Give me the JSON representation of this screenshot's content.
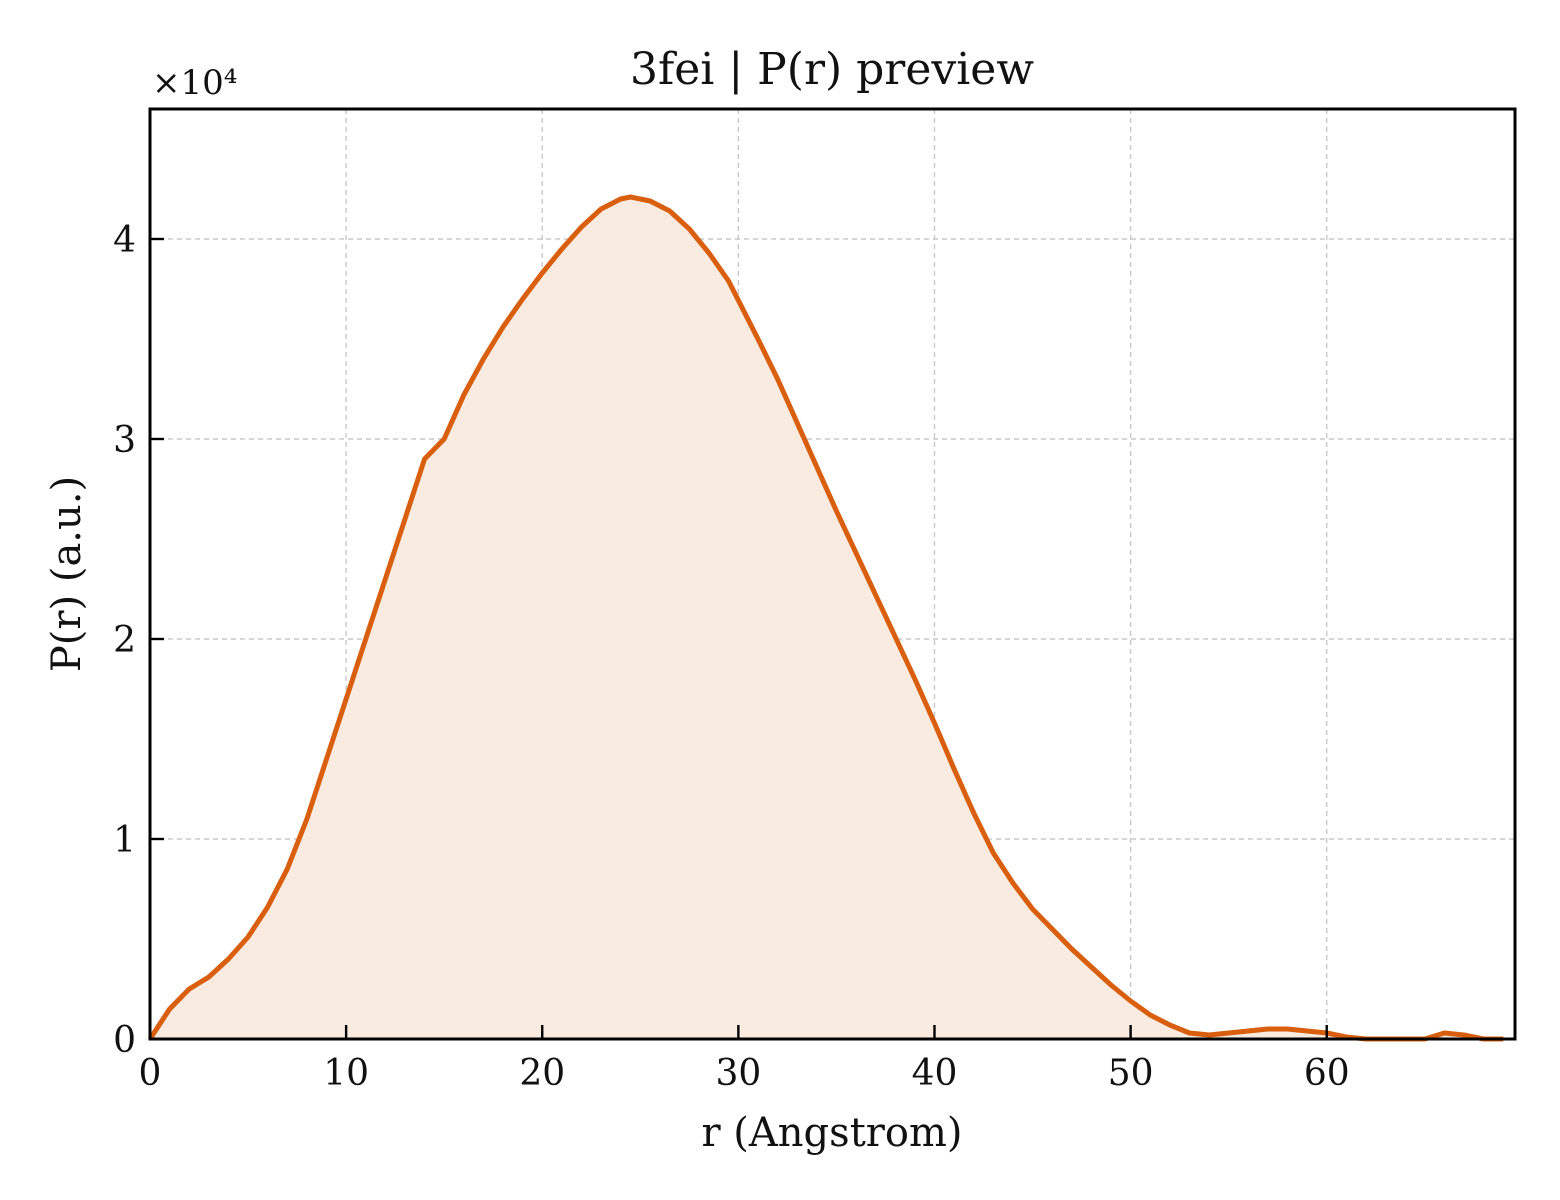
{
  "chart_data": {
    "type": "area",
    "title": "3fei | P(r) preview",
    "xlabel": "r (Angstrom)",
    "ylabel": "P(r) (a.u.)",
    "y_offset_label": "×10⁴",
    "xlim": [
      0,
      69.6
    ],
    "ylim": [
      0,
      4.65
    ],
    "xticks": [
      0,
      10,
      20,
      30,
      40,
      50,
      60
    ],
    "yticks": [
      0,
      1,
      2,
      3,
      4
    ],
    "grid": true,
    "line_color": "#d95f0e",
    "fill_color": "#f9ebe0",
    "series": [
      {
        "x": [
          0,
          1,
          2,
          3,
          4,
          5,
          6,
          7,
          8,
          9,
          10,
          11,
          12,
          13,
          14,
          15,
          16,
          17,
          18,
          19,
          20,
          21,
          22,
          23,
          24,
          24.5,
          25.5,
          26.5,
          27.5,
          28.5,
          29.5,
          31,
          32,
          33,
          34,
          35,
          36,
          37,
          38,
          39,
          40,
          41,
          42,
          43,
          44,
          45,
          46,
          47,
          48,
          49,
          50,
          51,
          52,
          53,
          54,
          55,
          56,
          57,
          58,
          59,
          60,
          61,
          62,
          63,
          64,
          65,
          66,
          67,
          68,
          69
        ],
        "y": [
          0,
          0.15,
          0.25,
          0.31,
          0.4,
          0.51,
          0.66,
          0.85,
          1.1,
          1.4,
          1.7,
          2.0,
          2.3,
          2.6,
          2.9,
          3.0,
          3.22,
          3.4,
          3.56,
          3.7,
          3.83,
          3.95,
          4.06,
          4.15,
          4.2,
          4.21,
          4.19,
          4.14,
          4.05,
          3.93,
          3.79,
          3.5,
          3.3,
          3.08,
          2.86,
          2.64,
          2.43,
          2.22,
          2.01,
          1.8,
          1.58,
          1.35,
          1.13,
          0.93,
          0.78,
          0.65,
          0.55,
          0.45,
          0.36,
          0.27,
          0.19,
          0.12,
          0.07,
          0.03,
          0.02,
          0.03,
          0.04,
          0.05,
          0.05,
          0.04,
          0.03,
          0.01,
          0.0,
          0.0,
          0.0,
          0.0,
          0.03,
          0.02,
          0.0,
          0.0
        ]
      }
    ]
  }
}
